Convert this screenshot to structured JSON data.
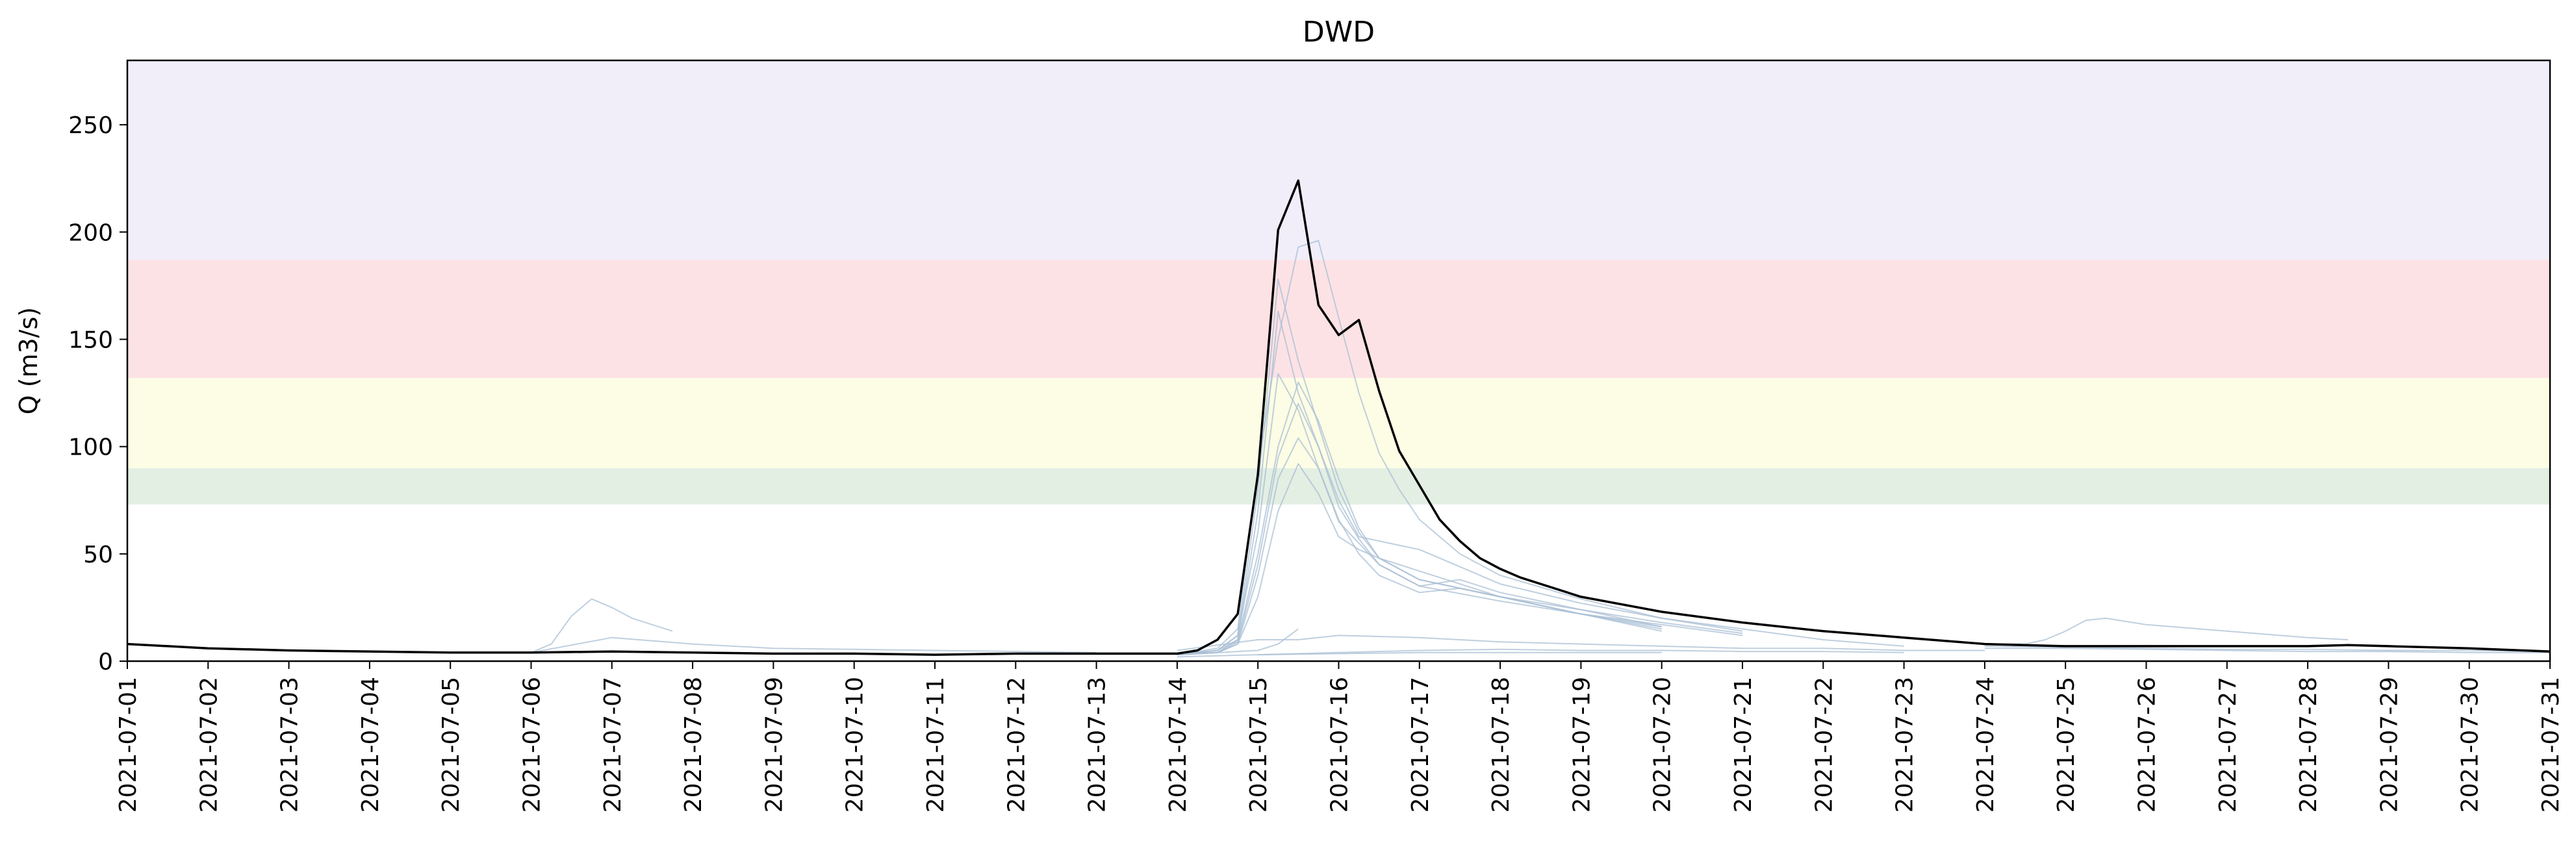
{
  "chart_data": {
    "type": "line",
    "title": "DWD",
    "xlabel": "",
    "ylabel": "Q (m3/s)",
    "xlim": [
      "2021-07-01",
      "2021-07-31"
    ],
    "ylim": [
      0,
      280
    ],
    "grid": false,
    "legend": "none",
    "x_ticks": [
      "2021-07-01",
      "2021-07-02",
      "2021-07-03",
      "2021-07-04",
      "2021-07-05",
      "2021-07-06",
      "2021-07-07",
      "2021-07-08",
      "2021-07-09",
      "2021-07-10",
      "2021-07-11",
      "2021-07-12",
      "2021-07-13",
      "2021-07-14",
      "2021-07-15",
      "2021-07-16",
      "2021-07-17",
      "2021-07-18",
      "2021-07-19",
      "2021-07-20",
      "2021-07-21",
      "2021-07-22",
      "2021-07-23",
      "2021-07-24",
      "2021-07-25",
      "2021-07-26",
      "2021-07-27",
      "2021-07-28",
      "2021-07-29",
      "2021-07-30",
      "2021-07-31"
    ],
    "y_ticks": [
      0,
      50,
      100,
      150,
      200,
      250
    ],
    "threshold_bands": [
      {
        "from": 73,
        "to": 90,
        "color": "#e3efe3"
      },
      {
        "from": 90,
        "to": 132,
        "color": "#fdfde5"
      },
      {
        "from": 132,
        "to": 187,
        "color": "#fde2e5"
      },
      {
        "from": 187,
        "to": 280,
        "color": "#f1eefa"
      }
    ],
    "observed": {
      "color": "#000000",
      "x": [
        "2021-07-01",
        "2021-07-02",
        "2021-07-03",
        "2021-07-04",
        "2021-07-05",
        "2021-07-06",
        "2021-07-07",
        "2021-07-08",
        "2021-07-09",
        "2021-07-10",
        "2021-07-11",
        "2021-07-12",
        "2021-07-13",
        "2021-07-13 12:00",
        "2021-07-14",
        "2021-07-14 06:00",
        "2021-07-14 12:00",
        "2021-07-14 18:00",
        "2021-07-15",
        "2021-07-15 06:00",
        "2021-07-15 12:00",
        "2021-07-15 18:00",
        "2021-07-16",
        "2021-07-16 06:00",
        "2021-07-16 12:00",
        "2021-07-16 18:00",
        "2021-07-17",
        "2021-07-17 06:00",
        "2021-07-17 12:00",
        "2021-07-17 18:00",
        "2021-07-18",
        "2021-07-18 06:00",
        "2021-07-19",
        "2021-07-20",
        "2021-07-21",
        "2021-07-22",
        "2021-07-23",
        "2021-07-24",
        "2021-07-25",
        "2021-07-26",
        "2021-07-27",
        "2021-07-28",
        "2021-07-28 12:00",
        "2021-07-29",
        "2021-07-30",
        "2021-07-31"
      ],
      "y": [
        8,
        6,
        5,
        4.5,
        4,
        4,
        4.5,
        4,
        3.5,
        3.5,
        3,
        3.5,
        3.5,
        3.5,
        3.5,
        5,
        10,
        22,
        87,
        201,
        224,
        166,
        152,
        159,
        126,
        98,
        82,
        66,
        56,
        48,
        43,
        39,
        30,
        23,
        18,
        14,
        11,
        8,
        7,
        7,
        7,
        7,
        7.5,
        7,
        6,
        4.5
      ]
    },
    "ensemble": {
      "color": "#a9bfd4",
      "members": [
        {
          "x": [
            "2021-07-06",
            "2021-07-06 06:00",
            "2021-07-06 12:00",
            "2021-07-06 18:00",
            "2021-07-07",
            "2021-07-07 06:00",
            "2021-07-07 12:00",
            "2021-07-07 18:00"
          ],
          "y": [
            4,
            8,
            21,
            29,
            25,
            20,
            17,
            14
          ]
        },
        {
          "x": [
            "2021-07-06",
            "2021-07-07",
            "2021-07-08",
            "2021-07-09",
            "2021-07-10",
            "2021-07-11",
            "2021-07-12",
            "2021-07-13"
          ],
          "y": [
            4,
            11,
            8,
            6,
            5.5,
            5,
            4.5,
            4
          ]
        },
        {
          "x": [
            "2021-07-14",
            "2021-07-14 12:00",
            "2021-07-14 18:00",
            "2021-07-15",
            "2021-07-15 06:00",
            "2021-07-15 12:00",
            "2021-07-15 18:00",
            "2021-07-16",
            "2021-07-16 06:00",
            "2021-07-16 12:00",
            "2021-07-16 18:00",
            "2021-07-17",
            "2021-07-17 12:00",
            "2021-07-18",
            "2021-07-19",
            "2021-07-20",
            "2021-07-21",
            "2021-07-22",
            "2021-07-23"
          ],
          "y": [
            3,
            6,
            15,
            90,
            150,
            193,
            196,
            160,
            125,
            97,
            80,
            66,
            50,
            40,
            29,
            20,
            15,
            10,
            7
          ]
        },
        {
          "x": [
            "2021-07-14",
            "2021-07-14 12:00",
            "2021-07-14 18:00",
            "2021-07-15",
            "2021-07-15 06:00",
            "2021-07-15 12:00",
            "2021-07-15 18:00",
            "2021-07-16",
            "2021-07-16 06:00",
            "2021-07-16 12:00",
            "2021-07-17",
            "2021-07-18",
            "2021-07-19",
            "2021-07-20",
            "2021-07-21"
          ],
          "y": [
            3,
            5,
            12,
            80,
            178,
            140,
            110,
            80,
            60,
            48,
            38,
            30,
            24,
            18,
            13
          ]
        },
        {
          "x": [
            "2021-07-14",
            "2021-07-14 12:00",
            "2021-07-14 18:00",
            "2021-07-15",
            "2021-07-15 06:00",
            "2021-07-15 12:00",
            "2021-07-15 18:00",
            "2021-07-16",
            "2021-07-16 06:00",
            "2021-07-16 12:00",
            "2021-07-17",
            "2021-07-18",
            "2021-07-19",
            "2021-07-20"
          ],
          "y": [
            3,
            5,
            10,
            70,
            163,
            125,
            100,
            72,
            57,
            45,
            35,
            28,
            22,
            16
          ]
        },
        {
          "x": [
            "2021-07-14",
            "2021-07-14 12:00",
            "2021-07-14 18:00",
            "2021-07-15",
            "2021-07-15 06:00",
            "2021-07-15 12:00",
            "2021-07-15 18:00",
            "2021-07-16",
            "2021-07-16 06:00",
            "2021-07-16 12:00",
            "2021-07-17",
            "2021-07-17 12:00",
            "2021-07-18",
            "2021-07-19",
            "2021-07-20"
          ],
          "y": [
            3,
            5,
            12,
            60,
            134,
            117,
            90,
            66,
            50,
            40,
            32,
            34,
            30,
            22,
            15
          ]
        },
        {
          "x": [
            "2021-07-14",
            "2021-07-14 12:00",
            "2021-07-14 18:00",
            "2021-07-15",
            "2021-07-15 06:00",
            "2021-07-15 12:00",
            "2021-07-15 18:00",
            "2021-07-16",
            "2021-07-16 06:00",
            "2021-07-16 12:00",
            "2021-07-17",
            "2021-07-18",
            "2021-07-19",
            "2021-07-20",
            "2021-07-21"
          ],
          "y": [
            3,
            4,
            10,
            50,
            100,
            130,
            112,
            85,
            62,
            48,
            38,
            30,
            22,
            17,
            12
          ]
        },
        {
          "x": [
            "2021-07-14",
            "2021-07-14 12:00",
            "2021-07-14 18:00",
            "2021-07-15",
            "2021-07-15 06:00",
            "2021-07-15 12:00",
            "2021-07-15 18:00",
            "2021-07-16",
            "2021-07-16 06:00",
            "2021-07-16 12:00",
            "2021-07-17",
            "2021-07-17 12:00",
            "2021-07-18",
            "2021-07-19",
            "2021-07-20"
          ],
          "y": [
            3,
            4,
            8,
            40,
            85,
            104,
            90,
            65,
            55,
            45,
            35,
            38,
            32,
            24,
            16
          ]
        },
        {
          "x": [
            "2021-07-14",
            "2021-07-14 12:00",
            "2021-07-14 18:00",
            "2021-07-15",
            "2021-07-15 06:00",
            "2021-07-15 12:00",
            "2021-07-15 18:00",
            "2021-07-16",
            "2021-07-16 06:00",
            "2021-07-16 12:00",
            "2021-07-17",
            "2021-07-17 12:00",
            "2021-07-18",
            "2021-07-19",
            "2021-07-20"
          ],
          "y": [
            3,
            4,
            8,
            30,
            70,
            92,
            78,
            58,
            52,
            48,
            42,
            36,
            30,
            22,
            14
          ]
        },
        {
          "x": [
            "2021-07-14",
            "2021-07-14 12:00",
            "2021-07-14 18:00",
            "2021-07-15",
            "2021-07-15 06:00",
            "2021-07-15 12:00",
            "2021-07-15 18:00",
            "2021-07-16",
            "2021-07-16 06:00",
            "2021-07-16 12:00",
            "2021-07-17",
            "2021-07-17 12:00",
            "2021-07-18",
            "2021-07-19",
            "2021-07-20",
            "2021-07-21"
          ],
          "y": [
            3,
            4,
            9,
            45,
            95,
            120,
            100,
            75,
            58,
            56,
            52,
            44,
            36,
            27,
            20,
            14
          ]
        },
        {
          "x": [
            "2021-07-14",
            "2021-07-15",
            "2021-07-15 12:00",
            "2021-07-16",
            "2021-07-17",
            "2021-07-18",
            "2021-07-19",
            "2021-07-20",
            "2021-07-21",
            "2021-07-22",
            "2021-07-23",
            "2021-07-24"
          ],
          "y": [
            5,
            10,
            10,
            12,
            11,
            9,
            8,
            7,
            6,
            6,
            5,
            5
          ]
        },
        {
          "x": [
            "2021-07-14",
            "2021-07-15",
            "2021-07-15 06:00",
            "2021-07-15 12:00"
          ],
          "y": [
            3,
            5,
            8,
            15
          ]
        },
        {
          "x": [
            "2021-07-14",
            "2021-07-15",
            "2021-07-16",
            "2021-07-17",
            "2021-07-18",
            "2021-07-19",
            "2021-07-20"
          ],
          "y": [
            2,
            3,
            3.5,
            4,
            4,
            4,
            4
          ]
        },
        {
          "x": [
            "2021-07-15",
            "2021-07-16",
            "2021-07-17",
            "2021-07-18",
            "2021-07-19",
            "2021-07-20",
            "2021-07-21",
            "2021-07-22",
            "2021-07-23"
          ],
          "y": [
            3,
            4,
            5,
            5.5,
            5,
            5,
            4.5,
            4.5,
            4
          ]
        },
        {
          "x": [
            "2021-07-24",
            "2021-07-24 12:00",
            "2021-07-24 18:00",
            "2021-07-25",
            "2021-07-25 06:00",
            "2021-07-25 12:00",
            "2021-07-26",
            "2021-07-27",
            "2021-07-28",
            "2021-07-28 12:00"
          ],
          "y": [
            8,
            8,
            10,
            14,
            19,
            20,
            17,
            14,
            11,
            10
          ]
        },
        {
          "x": [
            "2021-07-24",
            "2021-07-25",
            "2021-07-26",
            "2021-07-27",
            "2021-07-28",
            "2021-07-29",
            "2021-07-30",
            "2021-07-31"
          ],
          "y": [
            7,
            6.5,
            6,
            5.5,
            5.5,
            5,
            5,
            4.5
          ]
        },
        {
          "x": [
            "2021-07-24",
            "2021-07-25",
            "2021-07-26",
            "2021-07-27",
            "2021-07-28",
            "2021-07-29",
            "2021-07-30",
            "2021-07-31"
          ],
          "y": [
            6,
            6,
            5.5,
            5,
            4.5,
            4.5,
            4,
            4
          ]
        }
      ]
    }
  }
}
